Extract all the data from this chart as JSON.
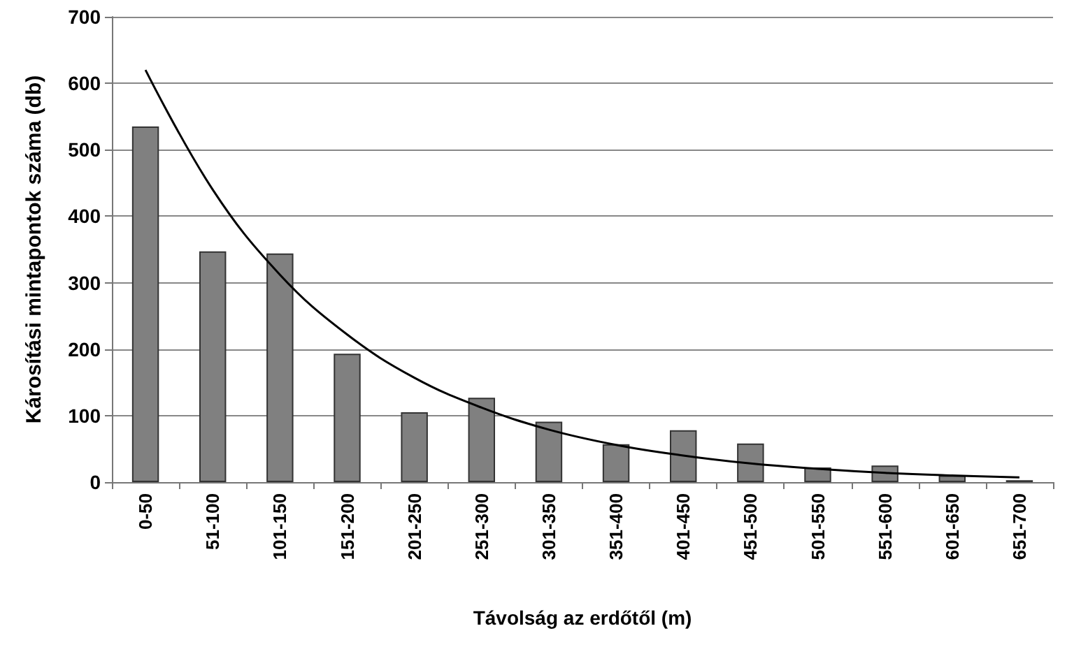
{
  "chart_data": {
    "type": "bar",
    "xlabel": "Távolság az erdőtől (m)",
    "ylabel": "Károsítási mintapontok száma (db)",
    "categories": [
      "0-50",
      "51-100",
      "101-150",
      "151-200",
      "201-250",
      "251-300",
      "301-350",
      "351-400",
      "401-450",
      "451-500",
      "501-550",
      "551-600",
      "601-650",
      "651-700"
    ],
    "series": [
      {
        "color": "#808080",
        "values": [
          535,
          347,
          344,
          193,
          105,
          127,
          91,
          57,
          78,
          58,
          22,
          25,
          10,
          3
        ]
      },
      {
        "type": "line",
        "color": "#000000",
        "values": [
          620,
          440,
          312,
          222,
          157,
          112,
          79,
          56,
          40,
          28,
          20,
          14,
          10,
          7
        ]
      }
    ],
    "ylim": [
      0,
      700
    ],
    "yticks": [
      0,
      100,
      200,
      300,
      400,
      500,
      600,
      700
    ],
    "grid": "y",
    "marker": "none",
    "line_style": "solid"
  }
}
